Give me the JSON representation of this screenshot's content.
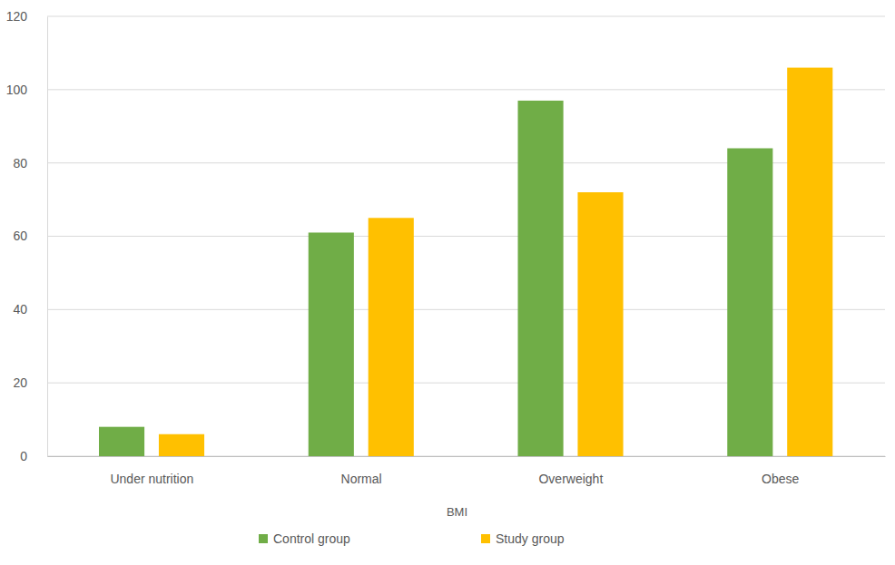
{
  "chart_data": {
    "type": "bar",
    "x_label": "BMI",
    "categories": [
      "Under nutrition",
      "Normal",
      "Overweight",
      "Obese"
    ],
    "series": [
      {
        "name": "Control group",
        "color": "#70ad47",
        "values": [
          8,
          61,
          97,
          84
        ]
      },
      {
        "name": "Study group",
        "color": "#ffc000",
        "values": [
          6,
          65,
          72,
          106
        ]
      }
    ],
    "ylim": [
      0,
      120
    ],
    "yticks": [
      0,
      20,
      40,
      60,
      80,
      100,
      120
    ],
    "grid": true,
    "legend": "bottom"
  }
}
